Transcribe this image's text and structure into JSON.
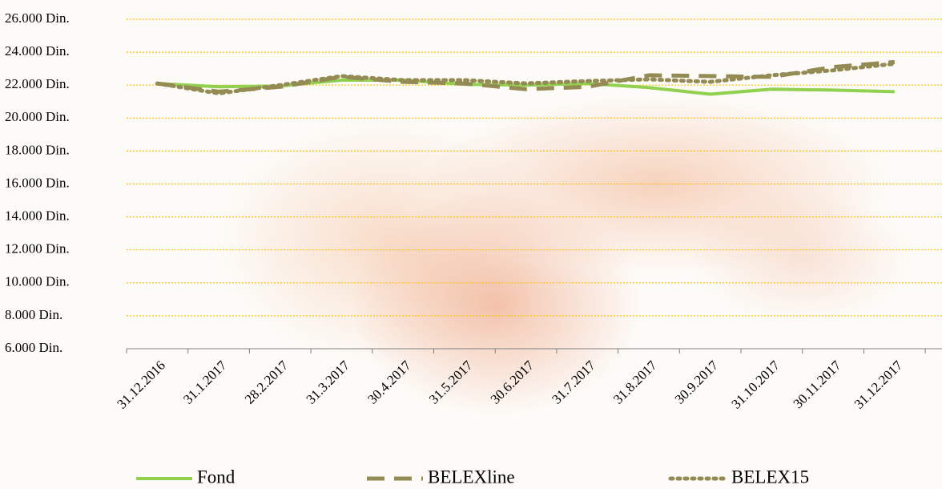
{
  "chart_data": {
    "type": "line",
    "categories": [
      "31.12.2016",
      "31.1.2017",
      "28.2.2017",
      "31.3.2017",
      "30.4.2017",
      "31.5.2017",
      "30.6.2017",
      "31.7.2017",
      "31.8.2017",
      "30.9.2017",
      "31.10.2017",
      "30.11.2017",
      "31.12.2017"
    ],
    "series": [
      {
        "name": "Fond",
        "color": "#92d050",
        "line_style": "solid",
        "values": [
          22100,
          21900,
          21950,
          22300,
          22300,
          22050,
          22000,
          22100,
          21850,
          21450,
          21750,
          21700,
          21600
        ]
      },
      {
        "name": "BELEXline",
        "color": "#948a54",
        "line_style": "dashed",
        "values": [
          22100,
          21600,
          21900,
          22500,
          22200,
          22100,
          21750,
          21900,
          22600,
          22550,
          22500,
          23100,
          23400
        ]
      },
      {
        "name": "BELEX15",
        "color": "#948a54",
        "line_style": "dotted",
        "values": [
          22100,
          21500,
          22000,
          22550,
          22300,
          22300,
          22100,
          22250,
          22350,
          22200,
          22600,
          22900,
          23300
        ]
      }
    ],
    "ylim": [
      6000,
      26000
    ],
    "yticks": [
      {
        "value": 6000,
        "label": "6.000 Din."
      },
      {
        "value": 8000,
        "label": "8.000 Din."
      },
      {
        "value": 10000,
        "label": "10.000 Din."
      },
      {
        "value": 12000,
        "label": "12.000 Din."
      },
      {
        "value": 14000,
        "label": "14.000 Din."
      },
      {
        "value": 16000,
        "label": "16.000 Din."
      },
      {
        "value": 18000,
        "label": "18.000 Din."
      },
      {
        "value": 20000,
        "label": "20.000 Din."
      },
      {
        "value": 22000,
        "label": "22.000 Din."
      },
      {
        "value": 24000,
        "label": "24.000 Din."
      },
      {
        "value": 26000,
        "label": "26.000 Din."
      }
    ],
    "grid": true,
    "grid_color": "#ffc000",
    "legend": "bottom"
  }
}
